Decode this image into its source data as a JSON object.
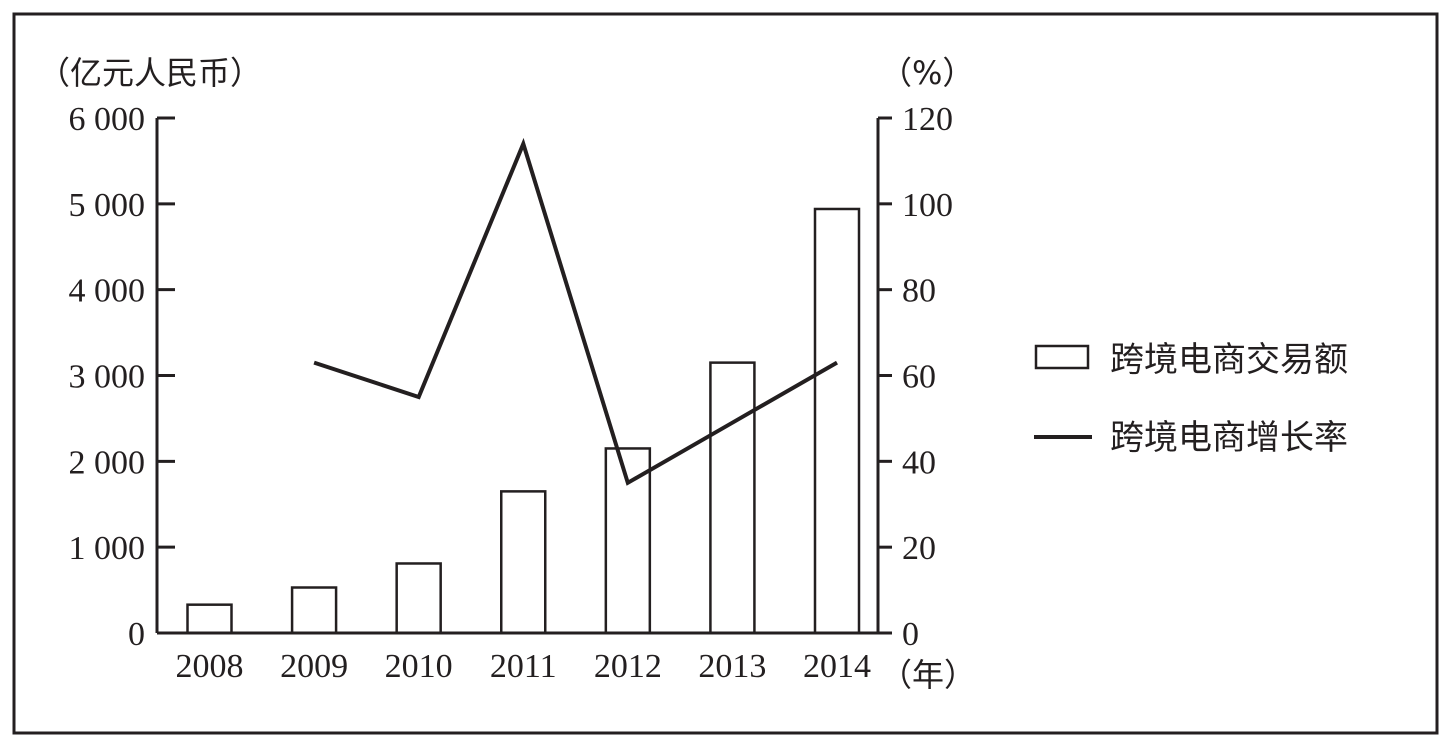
{
  "chart_data": {
    "type": "bar",
    "categories": [
      "2008",
      "2009",
      "2010",
      "2011",
      "2012",
      "2013",
      "2014"
    ],
    "series": [
      {
        "name": "跨境电商交易额",
        "type": "bar",
        "axis": "left",
        "values": [
          330,
          530,
          810,
          1650,
          2150,
          3150,
          4940
        ]
      },
      {
        "name": "跨境电商增长率",
        "type": "line",
        "axis": "right",
        "values": [
          null,
          63,
          55,
          114,
          35,
          49,
          63
        ]
      }
    ],
    "y_left": {
      "unit_label": "（亿元人民币）",
      "range": [
        0,
        6000
      ],
      "ticks": [
        0,
        1000,
        2000,
        3000,
        4000,
        5000,
        6000
      ],
      "tick_labels": [
        "0",
        "1 000",
        "2 000",
        "3 000",
        "4 000",
        "5 000",
        "6 000"
      ]
    },
    "y_right": {
      "unit_label": "（%）",
      "range": [
        0,
        120
      ],
      "ticks": [
        0,
        20,
        40,
        60,
        80,
        100,
        120
      ],
      "tick_labels": [
        "0",
        "20",
        "40",
        "60",
        "80",
        "100",
        "120"
      ]
    },
    "x_unit_label": "（年）",
    "legend_position": "right",
    "grid": false,
    "colors": {
      "ink": "#231f20",
      "bar_fill": "#ffffff"
    }
  }
}
